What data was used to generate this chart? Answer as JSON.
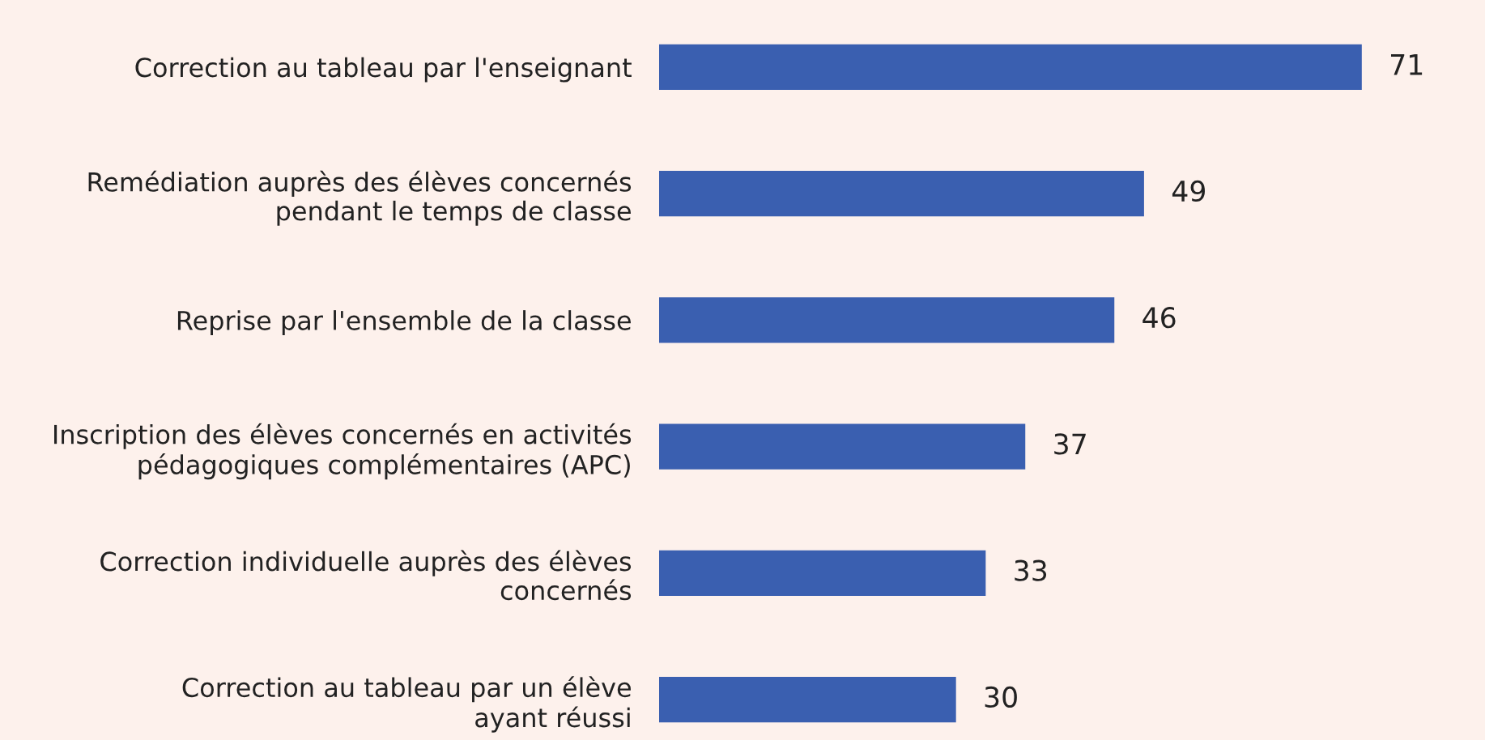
{
  "chart_data": {
    "type": "bar",
    "orientation": "horizontal",
    "categories": [
      "Correction au tableau par l'enseignant",
      "Remédiation auprès des élèves concernés\npendant le temps de classe",
      "Reprise par l'ensemble de la classe",
      "Inscription des élèves concernés en activités\npédagogiques complémentaires (APC)",
      "Correction individuelle auprès des élèves\nconcernés",
      "Correction au tableau par un élève\nayant réussi"
    ],
    "values": [
      71,
      49,
      46,
      37,
      33,
      30
    ],
    "color": "#3a5fb0",
    "data_labels": true,
    "grid": false,
    "legend": false,
    "tick_labels": "y"
  }
}
